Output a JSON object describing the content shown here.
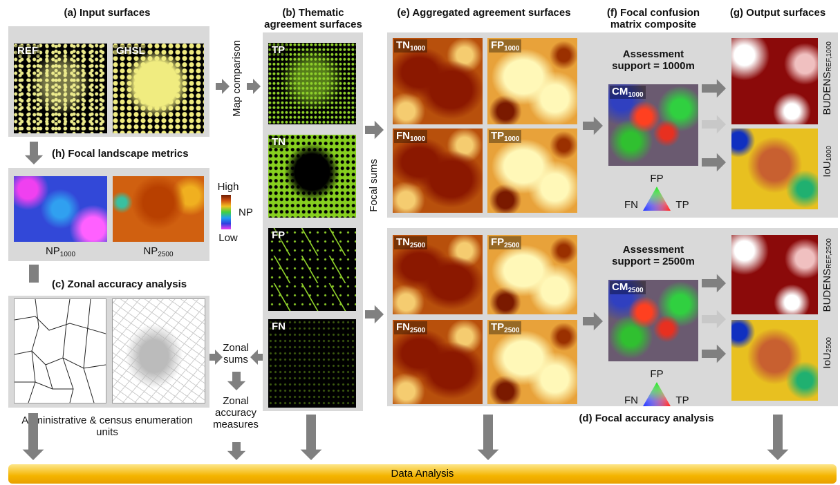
{
  "panels": {
    "a": {
      "title": "(a) Input surfaces",
      "images": [
        "REF",
        "GHSL"
      ]
    },
    "b": {
      "title": "(b) Thematic agreement surfaces",
      "images": [
        "TP",
        "TN",
        "FP",
        "FN"
      ]
    },
    "e": {
      "title": "(e) Aggregated agreement surfaces",
      "blocks": [
        {
          "tiles": [
            {
              "main": "TN",
              "sub": "1000"
            },
            {
              "main": "FP",
              "sub": "1000"
            },
            {
              "main": "FN",
              "sub": "1000"
            },
            {
              "main": "TP",
              "sub": "1000"
            }
          ]
        },
        {
          "tiles": [
            {
              "main": "TN",
              "sub": "2500"
            },
            {
              "main": "FP",
              "sub": "2500"
            },
            {
              "main": "FN",
              "sub": "2500"
            },
            {
              "main": "TP",
              "sub": "2500"
            }
          ]
        }
      ]
    },
    "f": {
      "title": "(f) Focal confusion matrix composite",
      "blocks": [
        {
          "support": "Assessment support = 1000m",
          "cm": {
            "main": "CM",
            "sub": "1000"
          },
          "legend": {
            "top": "FP",
            "left": "FN",
            "right": "TP"
          }
        },
        {
          "support": "Assessment support = 2500m",
          "cm": {
            "main": "CM",
            "sub": "2500"
          },
          "legend": {
            "top": "FP",
            "left": "FN",
            "right": "TP"
          }
        }
      ]
    },
    "g": {
      "title": "(g) Output surfaces",
      "blocks": [
        {
          "budens": {
            "main": "BUDENS",
            "sub": "REF,1000"
          },
          "iou": {
            "main": "IoU",
            "sub": "1000"
          }
        },
        {
          "budens": {
            "main": "BUDENS",
            "sub": "REF,2500"
          },
          "iou": {
            "main": "IoU",
            "sub": "2500"
          }
        }
      ]
    },
    "h": {
      "title": "(h) Focal landscape metrics",
      "legend": {
        "high": "High",
        "label": "NP",
        "low": "Low"
      },
      "captions": [
        {
          "main": "NP",
          "sub": "1000"
        },
        {
          "main": "NP",
          "sub": "2500"
        }
      ]
    },
    "c": {
      "title": "(c) Zonal accuracy analysis",
      "caption": "Administrative & census enumeration units"
    },
    "d": {
      "title": "(d) Focal accuracy analysis"
    }
  },
  "flow": {
    "map_comparison": "Map comparison",
    "focal_sums": "Focal sums",
    "zonal_sums": "Zonal sums",
    "zonal_measures": "Zonal accuracy measures"
  },
  "footer": "Data Analysis"
}
